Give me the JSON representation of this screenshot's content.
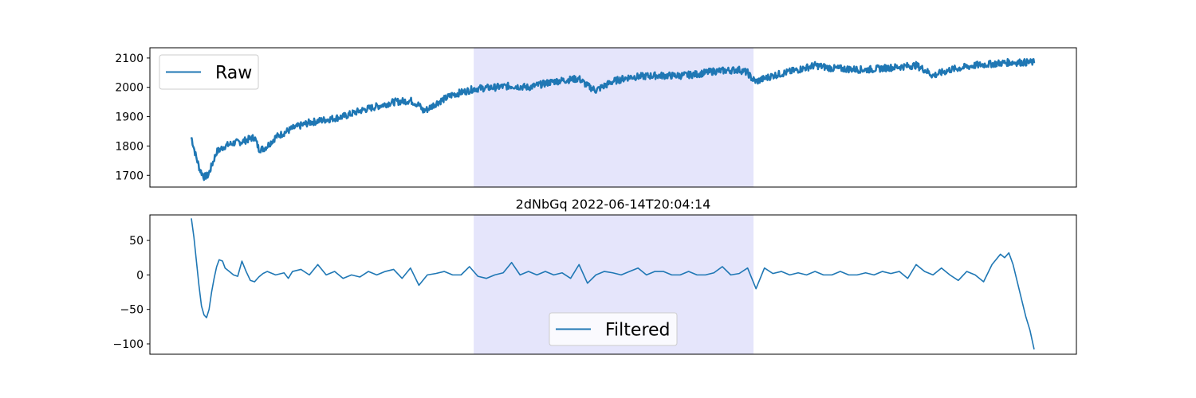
{
  "chart_data": [
    {
      "type": "line",
      "title": "",
      "xlabel": "",
      "ylabel": "",
      "ylim": [
        1660,
        2135
      ],
      "yticks": [
        1700,
        1800,
        1900,
        2000,
        2100
      ],
      "x_axis_ticks_shown": false,
      "grid": false,
      "legend": {
        "entries": [
          "Raw"
        ],
        "placement": "upper left"
      },
      "highlight_span": {
        "x_range": [
          0.335,
          0.667
        ],
        "color": "#e5e5fb"
      },
      "series": [
        {
          "name": "Raw",
          "color": "#1f77b4",
          "noise_band": 12,
          "x": [
            0.0,
            0.005,
            0.01,
            0.015,
            0.02,
            0.025,
            0.03,
            0.04,
            0.05,
            0.06,
            0.07,
            0.075,
            0.08,
            0.085,
            0.09,
            0.1,
            0.12,
            0.14,
            0.16,
            0.17,
            0.18,
            0.2,
            0.22,
            0.24,
            0.26,
            0.27,
            0.275,
            0.28,
            0.29,
            0.31,
            0.33,
            0.335,
            0.36,
            0.38,
            0.4,
            0.43,
            0.46,
            0.47,
            0.48,
            0.5,
            0.52,
            0.55,
            0.58,
            0.6,
            0.62,
            0.65,
            0.66,
            0.665,
            0.67,
            0.69,
            0.72,
            0.74,
            0.76,
            0.8,
            0.84,
            0.86,
            0.87,
            0.88,
            0.9,
            0.93,
            0.95,
            0.97,
            1.0
          ],
          "y": [
            1830,
            1770,
            1720,
            1695,
            1700,
            1740,
            1780,
            1800,
            1810,
            1815,
            1825,
            1830,
            1790,
            1790,
            1800,
            1830,
            1860,
            1880,
            1890,
            1895,
            1900,
            1920,
            1935,
            1950,
            1955,
            1940,
            1920,
            1925,
            1945,
            1975,
            1990,
            1995,
            2000,
            2005,
            2000,
            2020,
            2030,
            2005,
            1990,
            2020,
            2035,
            2040,
            2040,
            2045,
            2055,
            2060,
            2050,
            2030,
            2020,
            2040,
            2060,
            2075,
            2065,
            2060,
            2070,
            2075,
            2060,
            2040,
            2060,
            2075,
            2080,
            2085,
            2085
          ]
        }
      ]
    },
    {
      "type": "line",
      "title": "2dNbGq 2022-06-14T20:04:14",
      "xlabel": "",
      "ylabel": "",
      "ylim": [
        -115,
        87
      ],
      "yticks": [
        -100,
        -50,
        0,
        50
      ],
      "x_axis_ticks_shown": false,
      "grid": false,
      "legend": {
        "entries": [
          "Filtered"
        ],
        "placement": "lower center"
      },
      "highlight_span": {
        "x_range": [
          0.335,
          0.667
        ],
        "color": "#e5e5fb"
      },
      "series": [
        {
          "name": "Filtered",
          "color": "#1f77b4",
          "x": [
            0.0,
            0.003,
            0.006,
            0.009,
            0.012,
            0.015,
            0.018,
            0.021,
            0.024,
            0.027,
            0.03,
            0.033,
            0.037,
            0.04,
            0.045,
            0.05,
            0.055,
            0.06,
            0.065,
            0.07,
            0.075,
            0.08,
            0.085,
            0.09,
            0.1,
            0.11,
            0.115,
            0.12,
            0.13,
            0.14,
            0.15,
            0.16,
            0.17,
            0.18,
            0.19,
            0.2,
            0.21,
            0.22,
            0.23,
            0.24,
            0.25,
            0.26,
            0.27,
            0.28,
            0.29,
            0.3,
            0.31,
            0.32,
            0.33,
            0.34,
            0.35,
            0.36,
            0.37,
            0.38,
            0.39,
            0.4,
            0.41,
            0.42,
            0.43,
            0.44,
            0.45,
            0.46,
            0.47,
            0.48,
            0.49,
            0.5,
            0.51,
            0.52,
            0.53,
            0.54,
            0.55,
            0.56,
            0.57,
            0.58,
            0.59,
            0.6,
            0.61,
            0.62,
            0.63,
            0.64,
            0.65,
            0.66,
            0.665,
            0.67,
            0.68,
            0.69,
            0.7,
            0.71,
            0.72,
            0.73,
            0.74,
            0.75,
            0.76,
            0.77,
            0.78,
            0.79,
            0.8,
            0.81,
            0.82,
            0.83,
            0.84,
            0.85,
            0.86,
            0.87,
            0.88,
            0.89,
            0.9,
            0.91,
            0.92,
            0.93,
            0.94,
            0.95,
            0.96,
            0.965,
            0.97,
            0.975,
            0.98,
            0.985,
            0.99,
            0.995,
            1.0
          ],
          "y": [
            82,
            55,
            20,
            -15,
            -45,
            -58,
            -62,
            -50,
            -25,
            -5,
            12,
            22,
            20,
            10,
            5,
            0,
            -2,
            20,
            5,
            -8,
            -10,
            -3,
            2,
            5,
            0,
            3,
            -5,
            5,
            8,
            0,
            15,
            0,
            5,
            -5,
            0,
            -3,
            5,
            0,
            5,
            8,
            -5,
            10,
            -15,
            0,
            2,
            5,
            0,
            0,
            12,
            -2,
            -5,
            0,
            3,
            18,
            0,
            5,
            0,
            5,
            0,
            3,
            -5,
            15,
            -12,
            0,
            5,
            3,
            0,
            5,
            10,
            0,
            5,
            5,
            0,
            0,
            5,
            0,
            0,
            3,
            12,
            0,
            2,
            10,
            -5,
            -20,
            10,
            2,
            5,
            0,
            3,
            0,
            5,
            0,
            0,
            5,
            0,
            0,
            3,
            0,
            5,
            2,
            5,
            -5,
            15,
            5,
            0,
            10,
            0,
            -8,
            5,
            0,
            -10,
            15,
            30,
            25,
            32,
            15,
            -10,
            -35,
            -60,
            -80,
            -108
          ]
        }
      ]
    }
  ]
}
